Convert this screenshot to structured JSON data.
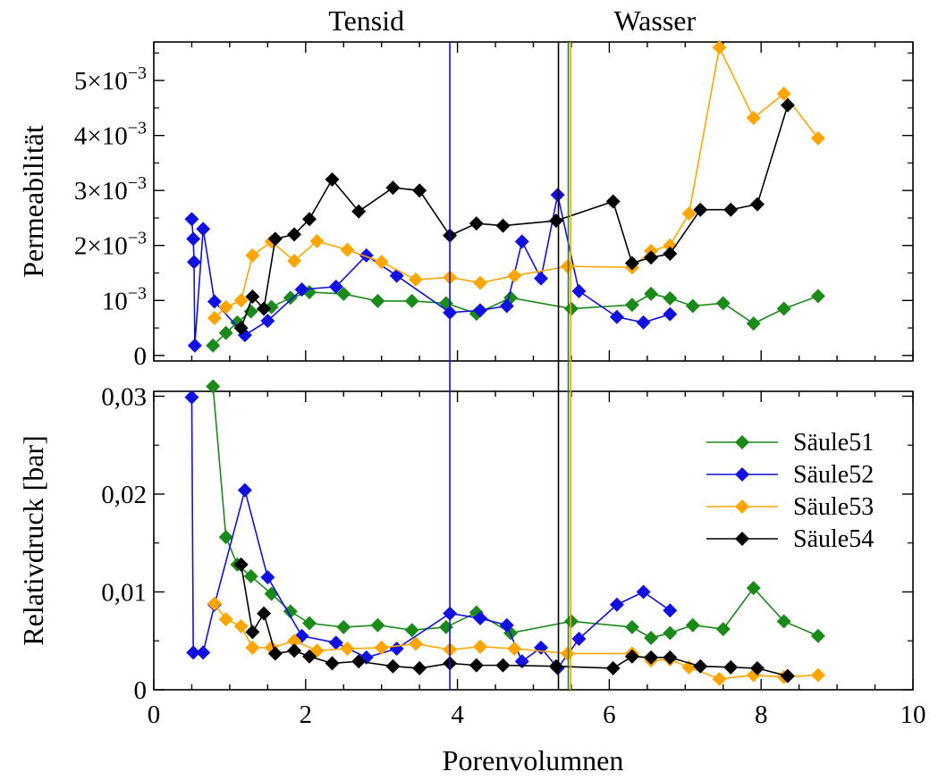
{
  "chart_data": {
    "type": "line",
    "x_label": "Porenvolumnen",
    "xlim": [
      0,
      10
    ],
    "x_ticks": [
      0,
      2,
      4,
      6,
      8,
      10
    ],
    "x_tick_labels": [
      "0",
      "2",
      "4",
      "6",
      "8",
      "10"
    ],
    "colors": {
      "Säule51": "#1a8a1a",
      "Säule52": "#1010e0",
      "Säule53": "#ffa500",
      "Säule54": "#000000"
    },
    "phase_labels": [
      {
        "text": "Tensid",
        "x": 2.8
      },
      {
        "text": "Wasser",
        "x": 6.6
      }
    ],
    "vertical_lines": [
      {
        "x": 3.9,
        "color": "#1010e0"
      },
      {
        "x": 5.33,
        "color": "#000000"
      },
      {
        "x": 5.46,
        "color": "#1a8a1a"
      },
      {
        "x": 5.49,
        "color": "#ffa500"
      }
    ],
    "legend": {
      "position": "right",
      "entries": [
        "Säule51",
        "Säule52",
        "Säule53",
        "Säule54"
      ]
    },
    "panels": [
      {
        "id": "permeability",
        "y_label": "Permeabilität",
        "ylim": [
          -0.0001,
          0.0057
        ],
        "y_ticks": [
          0,
          0.001,
          0.002,
          0.003,
          0.004,
          0.005
        ],
        "y_tick_labels": [
          "0",
          "10−3",
          "2×10−3",
          "3×10−3",
          "4×10−3",
          "5×10−3"
        ],
        "series": [
          {
            "name": "Säule51",
            "x": [
              0.78,
              0.95,
              1.1,
              1.28,
              1.55,
              1.8,
              2.05,
              2.5,
              2.95,
              3.4,
              3.85,
              4.25,
              4.7,
              5.5,
              6.3,
              6.55,
              6.8,
              7.1,
              7.5,
              7.9,
              8.3,
              8.75
            ],
            "y": [
              0.00018,
              0.00041,
              0.0006,
              0.0008,
              0.00088,
              0.00105,
              0.00115,
              0.00112,
              0.00099,
              0.00099,
              0.00095,
              0.00076,
              0.00105,
              0.00085,
              0.00092,
              0.00112,
              0.00104,
              0.0009,
              0.00095,
              0.00058,
              0.00085,
              0.00108
            ]
          },
          {
            "name": "Säule52",
            "x": [
              0.5,
              0.52,
              0.53,
              0.54,
              0.65,
              0.8,
              1.2,
              1.5,
              1.95,
              2.4,
              2.8,
              3.2,
              3.9,
              4.3,
              4.65,
              4.85,
              5.1,
              5.32,
              5.6,
              6.1,
              6.45,
              6.8
            ],
            "y": [
              0.00248,
              0.00212,
              0.0017,
              0.00018,
              0.0023,
              0.00098,
              0.00037,
              0.00063,
              0.0012,
              0.00125,
              0.00182,
              0.00145,
              0.00078,
              0.00082,
              0.0009,
              0.00207,
              0.0014,
              0.00292,
              0.00117,
              0.0007,
              0.0006,
              0.00075
            ]
          },
          {
            "name": "Säule53",
            "x": [
              0.8,
              0.95,
              1.15,
              1.3,
              1.55,
              1.85,
              2.15,
              2.55,
              3.0,
              3.45,
              3.9,
              4.3,
              4.75,
              5.45,
              6.3,
              6.55,
              6.8,
              7.05,
              7.45,
              7.9,
              8.3,
              8.75
            ],
            "y": [
              0.00068,
              0.00088,
              0.001,
              0.00182,
              0.00207,
              0.00172,
              0.00208,
              0.00192,
              0.0017,
              0.00138,
              0.00142,
              0.00132,
              0.00145,
              0.00162,
              0.0016,
              0.0019,
              0.002,
              0.00258,
              0.0056,
              0.00432,
              0.00476,
              0.00395
            ]
          },
          {
            "name": "Säule54",
            "x": [
              1.15,
              1.3,
              1.45,
              1.6,
              1.85,
              2.05,
              2.35,
              2.7,
              3.15,
              3.5,
              3.9,
              4.25,
              4.6,
              5.3,
              6.05,
              6.3,
              6.55,
              6.8,
              7.2,
              7.6,
              7.95,
              8.35
            ],
            "y": [
              0.0005,
              0.00107,
              0.00085,
              0.00212,
              0.0022,
              0.00248,
              0.0032,
              0.00262,
              0.00305,
              0.003,
              0.00218,
              0.0024,
              0.00236,
              0.00245,
              0.0028,
              0.00168,
              0.00178,
              0.00185,
              0.00265,
              0.00265,
              0.00275,
              0.00455
            ]
          }
        ]
      },
      {
        "id": "pressure",
        "y_label": "Relativdruck [bar]",
        "ylim": [
          0,
          0.0305
        ],
        "y_ticks": [
          0,
          0.01,
          0.02,
          0.03
        ],
        "y_tick_labels": [
          "0",
          "0,01",
          "0,02",
          "0,03"
        ],
        "series": [
          {
            "name": "Säule51",
            "x": [
              0.78,
              0.95,
              1.1,
              1.28,
              1.55,
              1.8,
              2.05,
              2.5,
              2.95,
              3.4,
              3.85,
              4.25,
              4.7,
              5.5,
              6.3,
              6.55,
              6.8,
              7.1,
              7.5,
              7.9,
              8.3,
              8.75
            ],
            "y": [
              0.031,
              0.0156,
              0.0128,
              0.0116,
              0.0098,
              0.008,
              0.0068,
              0.0064,
              0.0066,
              0.0061,
              0.0064,
              0.0079,
              0.0058,
              0.007,
              0.0064,
              0.0053,
              0.0058,
              0.0066,
              0.0062,
              0.0104,
              0.007,
              0.0055
            ]
          },
          {
            "name": "Säule52",
            "x": [
              0.5,
              0.52,
              0.65,
              0.8,
              1.2,
              1.5,
              1.95,
              2.4,
              2.8,
              3.2,
              3.9,
              4.3,
              4.65,
              4.85,
              5.1,
              5.32,
              5.6,
              6.1,
              6.45,
              6.8
            ],
            "y": [
              0.0299,
              0.0038,
              0.0038,
              0.0087,
              0.0204,
              0.0115,
              0.0055,
              0.0048,
              0.0033,
              0.0042,
              0.0078,
              0.0073,
              0.0066,
              0.0029,
              0.0043,
              0.0022,
              0.0052,
              0.0087,
              0.01,
              0.0081
            ]
          },
          {
            "name": "Säule53",
            "x": [
              0.8,
              0.95,
              1.15,
              1.3,
              1.55,
              1.85,
              2.15,
              2.55,
              3.0,
              3.45,
              3.9,
              4.3,
              4.75,
              5.45,
              6.3,
              6.55,
              6.8,
              7.05,
              7.45,
              7.9,
              8.3,
              8.75
            ],
            "y": [
              0.0088,
              0.0072,
              0.0065,
              0.0043,
              0.0043,
              0.005,
              0.004,
              0.0042,
              0.0043,
              0.0047,
              0.0041,
              0.0044,
              0.0042,
              0.0037,
              0.0037,
              0.003,
              0.0031,
              0.0023,
              0.0011,
              0.0015,
              0.0013,
              0.0015
            ]
          },
          {
            "name": "Säule54",
            "x": [
              1.15,
              1.3,
              1.45,
              1.6,
              1.85,
              2.05,
              2.35,
              2.7,
              3.15,
              3.5,
              3.9,
              4.25,
              4.6,
              5.3,
              6.05,
              6.3,
              6.55,
              6.8,
              7.2,
              7.6,
              7.95,
              8.35
            ],
            "y": [
              0.0128,
              0.0059,
              0.0078,
              0.0037,
              0.004,
              0.0034,
              0.0027,
              0.0029,
              0.0024,
              0.0022,
              0.0027,
              0.0025,
              0.0025,
              0.0024,
              0.0022,
              0.0034,
              0.0033,
              0.0033,
              0.0024,
              0.0023,
              0.0022,
              0.0014
            ]
          }
        ]
      }
    ]
  }
}
